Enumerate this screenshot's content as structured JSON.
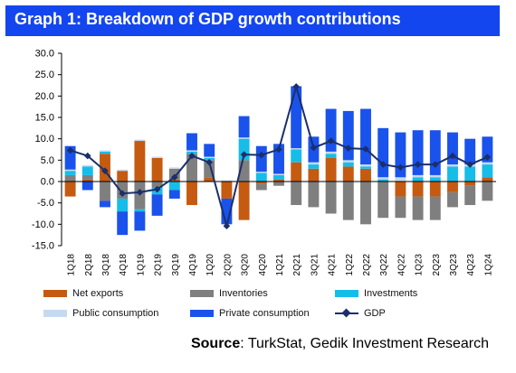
{
  "title": "Graph 1: Breakdown of GDP growth contributions",
  "source_label": "Source",
  "source_text": ": TurkStat, Gedik Investment Research",
  "chart_data": {
    "type": "bar",
    "stacked": true,
    "title": "Graph 1: Breakdown of GDP growth contributions",
    "xlabel": "",
    "ylabel": "",
    "ylim": [
      -15,
      30
    ],
    "yticks": [
      "30.0",
      "25.0",
      "20.0",
      "15.0",
      "10.0",
      "5.0",
      "0.0",
      "-5.0",
      "-10.0",
      "-15.0"
    ],
    "grid": false,
    "legend_position": "bottom",
    "categories": [
      "1Q18",
      "2Q18",
      "3Q18",
      "4Q18",
      "1Q19",
      "2Q19",
      "3Q19",
      "4Q19",
      "1Q20",
      "2Q20",
      "3Q20",
      "4Q20",
      "1Q21",
      "2Q21",
      "3Q21",
      "4Q21",
      "1Q22",
      "2Q22",
      "3Q22",
      "4Q22",
      "1Q23",
      "2Q23",
      "3Q23",
      "4Q23",
      "1Q24"
    ],
    "series": [
      {
        "name": "Net exports",
        "color": "#c55a11",
        "values": [
          -3.5,
          0.5,
          6.5,
          2.5,
          9.5,
          5.5,
          0.5,
          -5.5,
          1.0,
          -4.0,
          -9.0,
          -0.5,
          0.5,
          4.5,
          3.0,
          5.5,
          3.5,
          3.0,
          0.0,
          -3.5,
          -3.5,
          -3.5,
          -2.5,
          -1.0,
          1.0
        ]
      },
      {
        "name": "Inventories",
        "color": "#7f7f7f",
        "values": [
          1.5,
          1.0,
          -4.5,
          -4.0,
          -6.5,
          -1.5,
          2.5,
          6.5,
          4.0,
          0.0,
          5.0,
          -1.5,
          -1.0,
          -5.5,
          -6.0,
          -7.5,
          -9.0,
          -10.0,
          -8.5,
          -5.0,
          -5.5,
          -5.5,
          -3.5,
          -4.5,
          -4.5
        ]
      },
      {
        "name": "Investments",
        "color": "#16bde8",
        "values": [
          1.0,
          2.0,
          0.5,
          -3.0,
          -0.5,
          -1.5,
          -2.0,
          0.5,
          0.5,
          0.0,
          5.0,
          2.0,
          1.0,
          3.0,
          1.0,
          1.0,
          1.0,
          0.5,
          0.5,
          0.0,
          1.0,
          1.0,
          3.5,
          3.5,
          3.0
        ]
      },
      {
        "name": "Public consumption",
        "color": "#c5d9f1",
        "values": [
          0.3,
          0.3,
          0.3,
          0.3,
          0.3,
          0.3,
          0.3,
          0.3,
          0.3,
          0.3,
          0.3,
          0.3,
          0.3,
          0.3,
          0.5,
          0.5,
          0.5,
          0.5,
          0.5,
          1.0,
          0.5,
          0.5,
          0.5,
          0.5,
          0.5
        ]
      },
      {
        "name": "Private consumption",
        "color": "#1a52ec",
        "values": [
          5.5,
          -2.0,
          -1.5,
          -5.5,
          -4.5,
          -5.0,
          -2.0,
          4.0,
          3.0,
          -6.0,
          5.0,
          6.0,
          7.0,
          14.5,
          6.0,
          10.0,
          11.5,
          13.0,
          11.5,
          10.5,
          10.5,
          10.5,
          7.5,
          6.0,
          6.0
        ]
      }
    ],
    "line": {
      "name": "GDP",
      "color": "#1a2f6b",
      "values": [
        7.3,
        6.0,
        2.5,
        -2.8,
        -2.5,
        -1.8,
        1.0,
        6.0,
        4.5,
        -10.4,
        6.3,
        6.2,
        7.5,
        22.2,
        7.9,
        9.5,
        7.8,
        7.6,
        4.0,
        3.3,
        4.0,
        4.0,
        6.0,
        4.0,
        5.7
      ]
    }
  }
}
